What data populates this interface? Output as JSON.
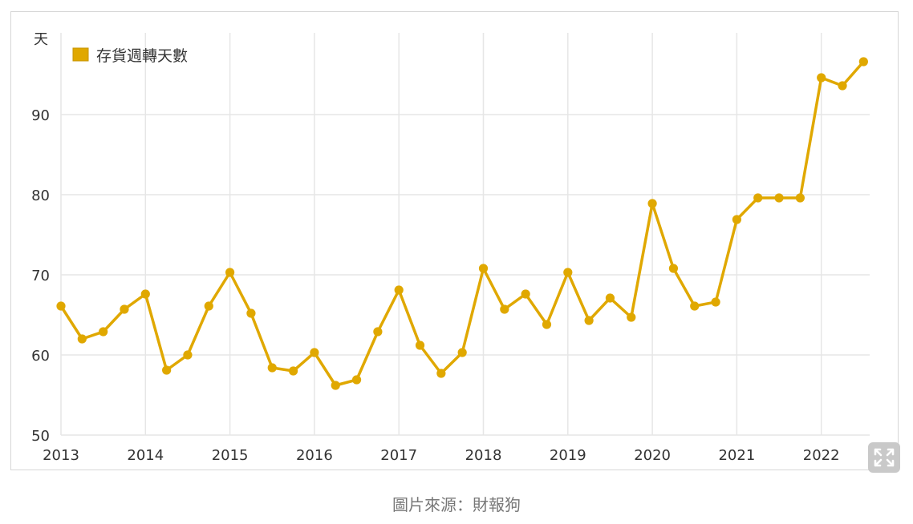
{
  "chart_data": {
    "type": "line",
    "y_unit": "天",
    "ylim": [
      50,
      100
    ],
    "yticks": [
      50,
      60,
      70,
      80,
      90
    ],
    "xticks": [
      "2013",
      "2014",
      "2015",
      "2016",
      "2017",
      "2018",
      "2019",
      "2020",
      "2021",
      "2022"
    ],
    "grid": true,
    "legend_position": "top-left",
    "series": [
      {
        "name": "存貨週轉天數",
        "color": "#e0a800",
        "x": [
          "2013Q1",
          "2013Q2",
          "2013Q3",
          "2013Q4",
          "2014Q1",
          "2014Q2",
          "2014Q3",
          "2014Q4",
          "2015Q1",
          "2015Q2",
          "2015Q3",
          "2015Q4",
          "2016Q1",
          "2016Q2",
          "2016Q3",
          "2016Q4",
          "2017Q1",
          "2017Q2",
          "2017Q3",
          "2017Q4",
          "2018Q1",
          "2018Q2",
          "2018Q3",
          "2018Q4",
          "2019Q1",
          "2019Q2",
          "2019Q3",
          "2019Q4",
          "2020Q1",
          "2020Q2",
          "2020Q3",
          "2020Q4",
          "2021Q1",
          "2021Q2",
          "2021Q3",
          "2021Q4",
          "2022Q1",
          "2022Q2",
          "2022Q3"
        ],
        "values": [
          66.1,
          62.0,
          62.9,
          65.7,
          67.6,
          58.1,
          60.0,
          66.1,
          70.3,
          65.2,
          58.4,
          58.0,
          60.3,
          56.2,
          56.9,
          62.9,
          68.1,
          61.2,
          57.7,
          60.3,
          70.8,
          65.7,
          67.6,
          63.8,
          70.3,
          64.3,
          67.1,
          64.7,
          78.9,
          70.8,
          66.1,
          66.6,
          76.9,
          79.6,
          79.6,
          79.6,
          94.6,
          93.6,
          96.6
        ]
      }
    ]
  },
  "fullscreen_icon": "expand-icon",
  "caption": "圖片來源：財報狗"
}
